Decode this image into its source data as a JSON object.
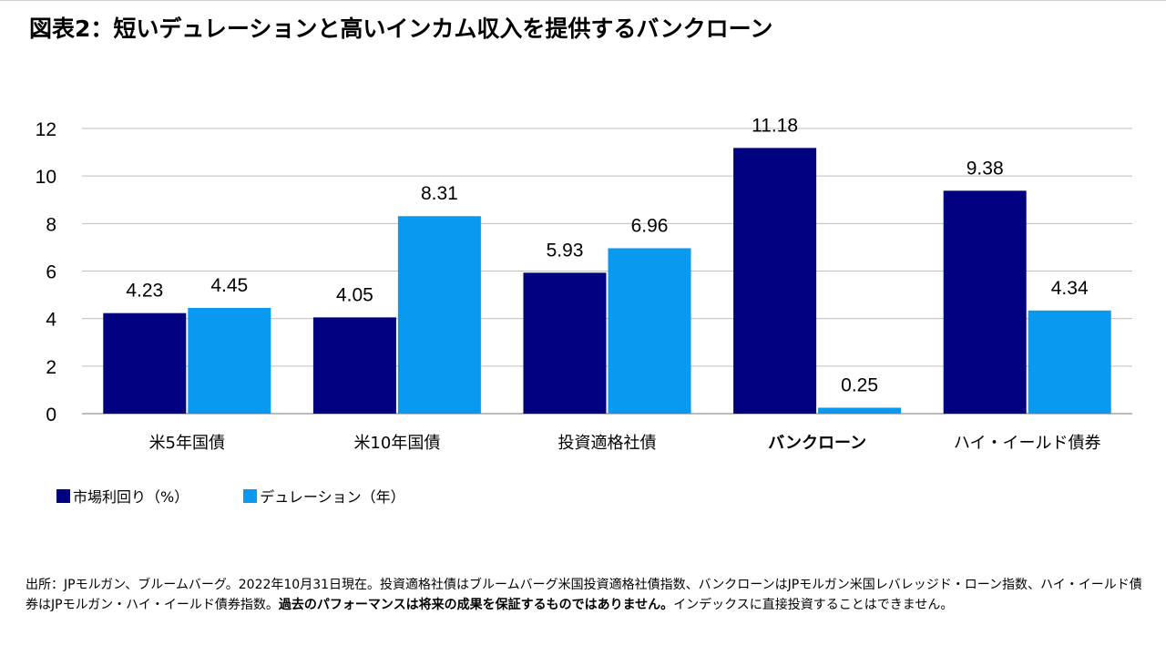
{
  "title": "図表2：短いデュレーションと高いインカム収入を提供するバンクローン",
  "chart_data": {
    "type": "bar",
    "categories": [
      "米5年国債",
      "米10年国債",
      "投資適格社債",
      "バンクローン",
      "ハイ・イールド債券"
    ],
    "highlight_category": "バンクローン",
    "series": [
      {
        "name": "市場利回り（%）",
        "color": "#000080",
        "values": [
          4.23,
          4.05,
          5.93,
          11.18,
          9.38
        ],
        "labels": [
          "4.23",
          "4.05",
          "5.93",
          "11.18",
          "9.38"
        ]
      },
      {
        "name": "デュレーション（年）",
        "color": "#0a99f0",
        "values": [
          4.45,
          8.31,
          6.96,
          0.25,
          4.34
        ],
        "labels": [
          "4.45",
          "8.31",
          "6.96",
          "0.25",
          "4.34"
        ]
      }
    ],
    "ylim": [
      0,
      12
    ],
    "yticks": [
      "0",
      "2",
      "4",
      "6",
      "8",
      "10",
      "12"
    ],
    "grid": true,
    "legend_position": "bottom-left",
    "xlabel": "",
    "ylabel": ""
  },
  "source": {
    "text": "出所：JPモルガン、ブルームバーグ。2022年10月31日現在。投資適格社債はブルームバーグ米国投資適格社債指数、バンクローンはJPモルガン米国レバレッジド・ローン指数、ハイ・イールド債券はJPモルガン・ハイ・イールド債券指数。",
    "bold": "過去のパフォーマンスは将来の成果を保証するものではありません。",
    "tail": "インデックスに直接投資することはできません。"
  }
}
